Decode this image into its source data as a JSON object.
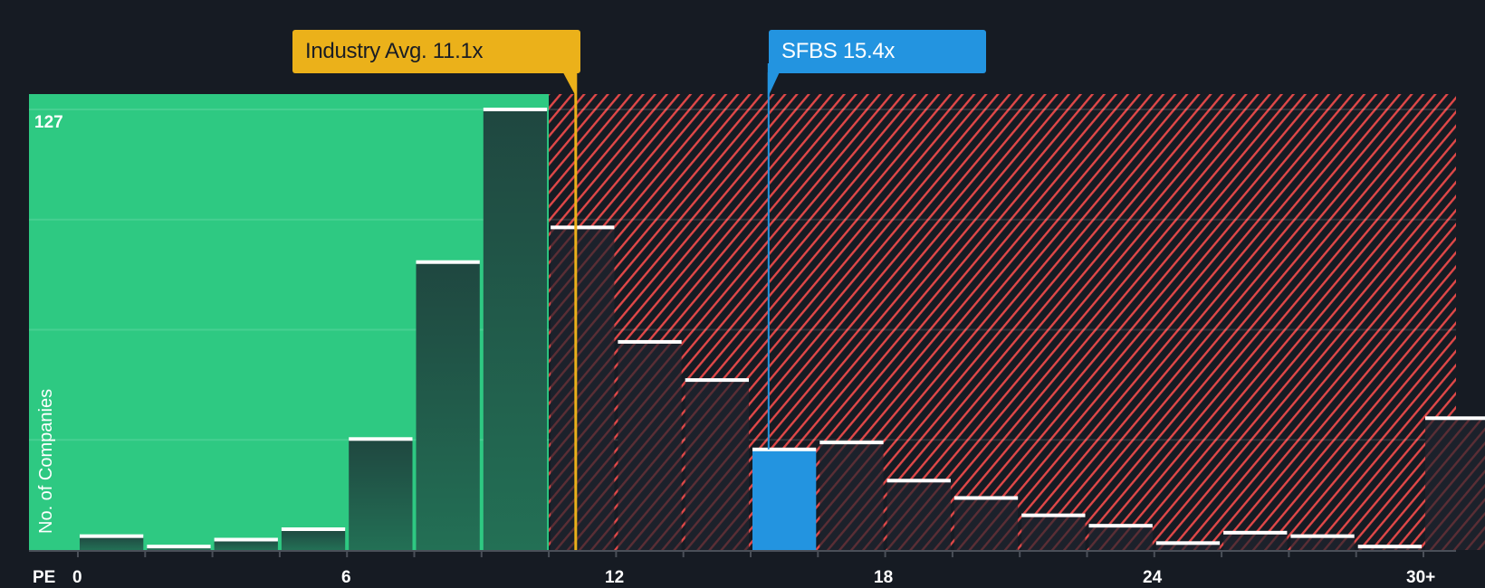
{
  "markers": {
    "industry": {
      "label": "Industry Avg. 11.1x",
      "value": 11.1,
      "color": "#ebb11a"
    },
    "company": {
      "label": "SFBS 15.4x",
      "ticker": "SFBS",
      "value": 15.4,
      "color": "#2394e0"
    }
  },
  "axis": {
    "x_title": "PE",
    "y_title": "No. of Companies",
    "y_max_label": "127",
    "x_ticks": [
      {
        "value": 0,
        "label": "0"
      },
      {
        "value": 6,
        "label": "6"
      },
      {
        "value": 12,
        "label": "12"
      },
      {
        "value": 18,
        "label": "18"
      },
      {
        "value": 24,
        "label": "24"
      },
      {
        "value": 30,
        "label": "30+"
      }
    ]
  },
  "colors": {
    "background": "#161b23",
    "undervalued_zone": "#2ec982",
    "overvalued_stripe": "#e04848",
    "bar_green": "#214b41",
    "bar_dark": "#1c212b",
    "bar_company": "#2394e0",
    "bar_cap": "#ffffff"
  },
  "chart_data": {
    "type": "bar",
    "title": "",
    "xlabel": "PE",
    "ylabel": "No. of Companies",
    "ylim": [
      0,
      127
    ],
    "bin_width": 1.5,
    "categories": [
      "0-1.5",
      "1.5-3",
      "3-4.5",
      "4.5-6",
      "6-7.5",
      "7.5-9",
      "9-10.5",
      "10.5-12",
      "12-13.5",
      "13.5-15",
      "15-16.5",
      "16.5-18",
      "18-19.5",
      "19.5-21",
      "21-22.5",
      "22.5-24",
      "24-25.5",
      "25.5-27",
      "27-28.5",
      "28.5-30",
      "30+"
    ],
    "values": [
      4,
      1,
      3,
      6,
      32,
      83,
      127,
      93,
      60,
      49,
      29,
      31,
      20,
      15,
      10,
      7,
      2,
      5,
      4,
      1,
      38
    ],
    "highlight_index": 10,
    "annotations": [
      {
        "text": "Industry Avg. 11.1x",
        "x": 11.1
      },
      {
        "text": "SFBS 15.4x",
        "x": 15.4
      }
    ],
    "shaded_regions": [
      {
        "from": 0,
        "to": 10.5,
        "style": "solid green",
        "meaning": "below industry avg"
      },
      {
        "from": 10.5,
        "to": 32,
        "style": "red hatched",
        "meaning": "above industry avg"
      }
    ],
    "grid": true,
    "gridlines_y": [
      31.75,
      63.5,
      95.25,
      127
    ]
  }
}
